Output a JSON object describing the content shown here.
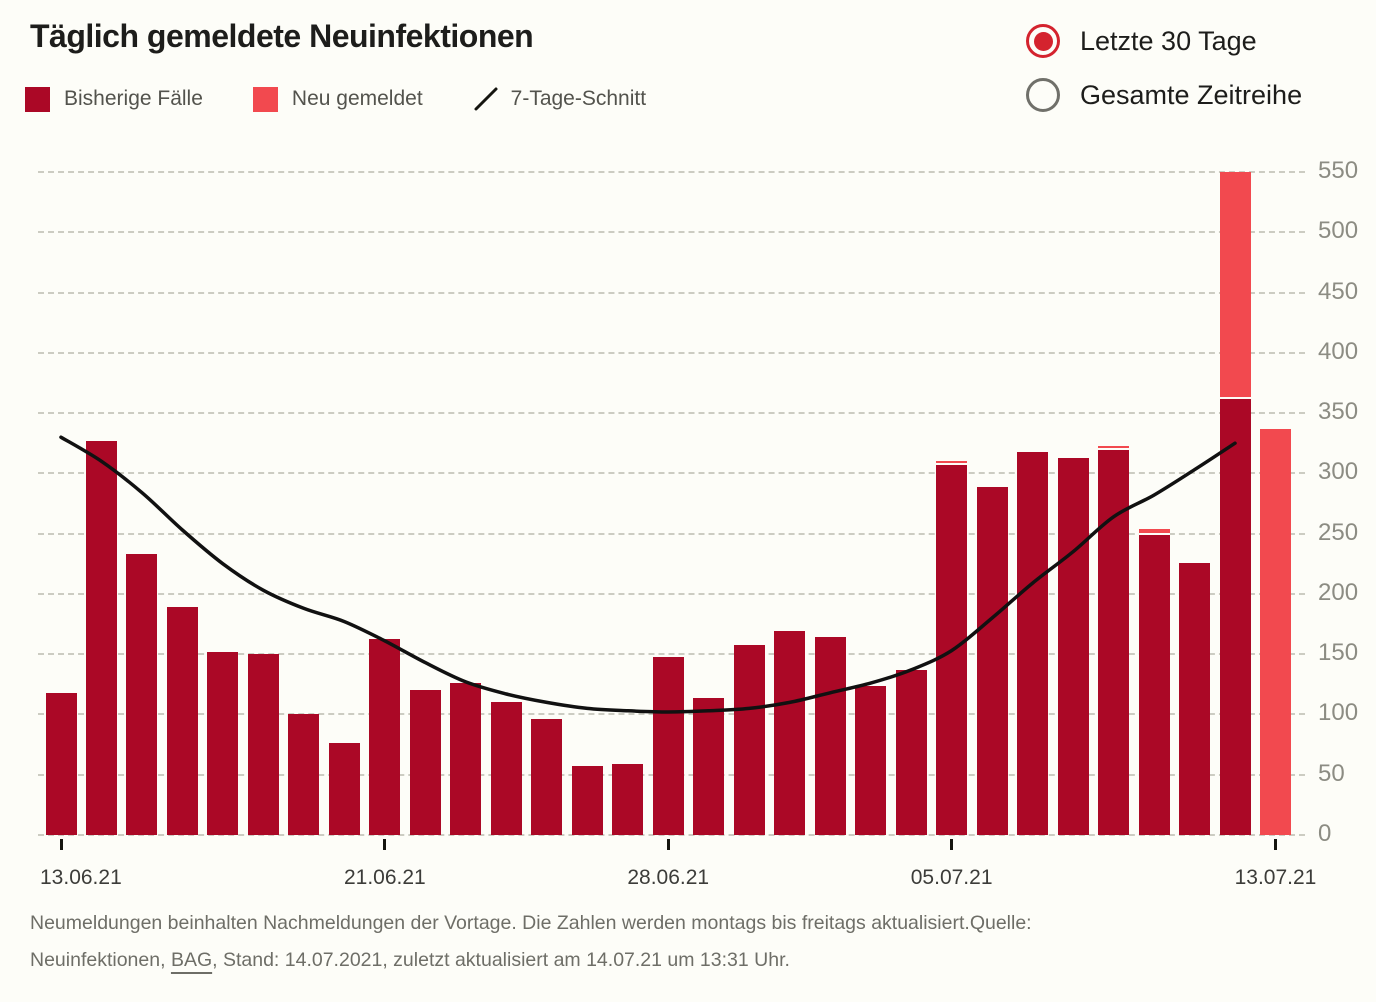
{
  "header": {
    "title": "Täglich gemeldete Neuinfektionen"
  },
  "controls": {
    "options": [
      {
        "label": "Letzte 30 Tage",
        "selected": true
      },
      {
        "label": "Gesamte Zeitreihe",
        "selected": false
      }
    ]
  },
  "legend": [
    {
      "label": "Bisherige Fälle",
      "swatch": "square",
      "color": "#ab0826"
    },
    {
      "label": "Neu gemeldet",
      "swatch": "square",
      "color": "#f2494f"
    },
    {
      "label": "7-Tage-Schnitt",
      "swatch": "line",
      "color": "#111111"
    }
  ],
  "colors": {
    "bar_previous": "#ab0826",
    "bar_new": "#f2494f",
    "line": "#111111",
    "radio_selected": "#d4232e",
    "radio_unselected_ring": "#70706a",
    "background": "#fdfdf8"
  },
  "chart_data": {
    "type": "bar",
    "stacked": true,
    "title": "Täglich gemeldete Neuinfektionen",
    "xlabel": "",
    "ylabel": "",
    "ylim": [
      0,
      550
    ],
    "y_ticks": [
      0,
      50,
      100,
      150,
      200,
      250,
      300,
      350,
      400,
      450,
      500,
      550
    ],
    "y_axis_position": "right",
    "grid": "dashed-horizontal",
    "legend_position": "top-left",
    "categories": [
      "13.06.21",
      "14.06.21",
      "15.06.21",
      "16.06.21",
      "17.06.21",
      "18.06.21",
      "19.06.21",
      "20.06.21",
      "21.06.21",
      "22.06.21",
      "23.06.21",
      "24.06.21",
      "25.06.21",
      "26.06.21",
      "27.06.21",
      "28.06.21",
      "29.06.21",
      "30.06.21",
      "01.07.21",
      "02.07.21",
      "03.07.21",
      "04.07.21",
      "05.07.21",
      "06.07.21",
      "07.07.21",
      "08.07.21",
      "09.07.21",
      "10.07.21",
      "11.07.21",
      "12.07.21",
      "13.07.21"
    ],
    "x_tick_labels": [
      "13.06.21",
      "21.06.21",
      "28.06.21",
      "05.07.21",
      "13.07.21"
    ],
    "x_tick_indices": [
      0,
      8,
      15,
      22,
      30
    ],
    "series": [
      {
        "name": "Bisherige Fälle",
        "type": "bar",
        "color": "#ab0826",
        "values": [
          118,
          327,
          233,
          189,
          152,
          150,
          100,
          76,
          163,
          120,
          126,
          110,
          96,
          57,
          59,
          148,
          114,
          158,
          169,
          164,
          124,
          137,
          307,
          289,
          318,
          313,
          319,
          249,
          226,
          362,
          0
        ]
      },
      {
        "name": "Neu gemeldet",
        "type": "bar",
        "color": "#f2494f",
        "values": [
          0,
          0,
          0,
          0,
          0,
          0,
          0,
          0,
          0,
          0,
          0,
          0,
          0,
          0,
          0,
          0,
          0,
          0,
          0,
          0,
          0,
          0,
          3,
          0,
          0,
          0,
          4,
          5,
          0,
          188,
          337
        ]
      },
      {
        "name": "7-Tage-Schnitt",
        "type": "line",
        "color": "#111111",
        "values": [
          330,
          310,
          284,
          253,
          225,
          203,
          188,
          177,
          161,
          143,
          127,
          117,
          110,
          105,
          103,
          102,
          103,
          105,
          110,
          118,
          126,
          137,
          153,
          180,
          209,
          235,
          264,
          282,
          303,
          325,
          null
        ]
      }
    ]
  },
  "footer": {
    "line1": "Neumeldungen beinhalten Nachmeldungen der Vortage. Die Zahlen werden montags bis freitags aktualisiert.Quelle:",
    "line2_prefix": "Neuinfektionen, ",
    "source_link": "BAG",
    "line2_suffix": ", Stand: 14.07.2021, zuletzt aktualisiert am 14.07.21 um 13:31 Uhr."
  }
}
